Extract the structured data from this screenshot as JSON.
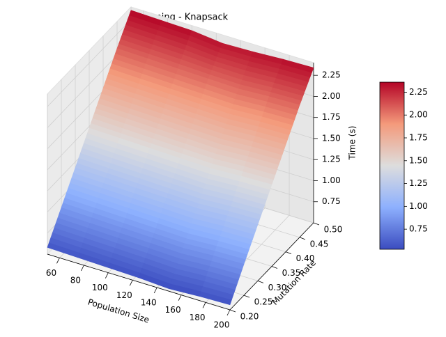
{
  "chart_data": {
    "type": "surface",
    "title": "GA Timing - Knapsack",
    "xlabel": "Population Size",
    "ylabel": "Mutation Rate",
    "zlabel": "Time (s)",
    "x": [
      50,
      75,
      100,
      125,
      150,
      175,
      200
    ],
    "y": [
      0.2,
      0.25,
      0.3,
      0.35,
      0.4,
      0.45,
      0.5
    ],
    "z": [
      [
        0.58,
        0.57,
        0.56,
        0.55,
        0.53,
        0.55,
        0.56
      ],
      [
        0.88,
        0.87,
        0.86,
        0.85,
        0.84,
        0.86,
        0.87
      ],
      [
        1.18,
        1.17,
        1.16,
        1.15,
        1.14,
        1.16,
        1.17
      ],
      [
        1.48,
        1.47,
        1.46,
        1.45,
        1.44,
        1.46,
        1.47
      ],
      [
        1.78,
        1.77,
        1.76,
        1.75,
        1.74,
        1.76,
        1.77
      ],
      [
        2.08,
        2.07,
        2.06,
        2.05,
        2.04,
        2.06,
        2.07
      ],
      [
        2.36,
        2.35,
        2.34,
        2.3,
        2.31,
        2.33,
        2.34
      ]
    ],
    "xlim": [
      50,
      200
    ],
    "ylim": [
      0.2,
      0.5
    ],
    "zlim": [
      0.5,
      2.4
    ],
    "xticks": [
      60,
      80,
      100,
      120,
      140,
      160,
      180,
      200
    ],
    "yticks": [
      {
        "value": 0.2,
        "label": "0.20"
      },
      {
        "value": 0.25,
        "label": "0.25"
      },
      {
        "value": 0.3,
        "label": "0.30"
      },
      {
        "value": 0.35,
        "label": "0.35"
      },
      {
        "value": 0.4,
        "label": "0.40"
      },
      {
        "value": 0.45,
        "label": "0.45"
      },
      {
        "value": 0.5,
        "label": "0.50"
      }
    ],
    "zticks": [
      0.75,
      {
        "value": 1,
        "label": "1.00"
      },
      1.25,
      {
        "value": 1.5,
        "label": "1.50"
      },
      1.75,
      {
        "value": 2,
        "label": "2.00"
      },
      2.25
    ],
    "colormap": "coolwarm",
    "grid": true,
    "colorbar": true
  }
}
